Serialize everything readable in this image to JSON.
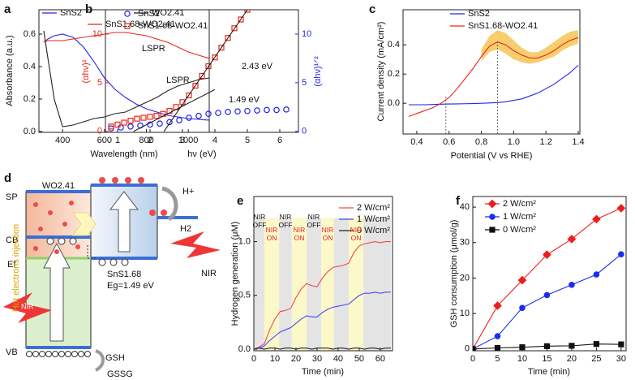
{
  "chart_data": [
    {
      "type": "line",
      "label": "a",
      "xlabel": "Wavelength (nm)",
      "ylabel": "Absorbance (a.u.)",
      "xlim": [
        287,
        1100
      ],
      "ylim": [
        -0.005,
        0.75
      ],
      "xticks": [
        400,
        600,
        800,
        1000
      ],
      "yticks": [
        {
          "value": 0,
          "label": "0.0"
        },
        0.2,
        0.4,
        0.6
      ],
      "x": [
        310,
        330,
        360,
        400,
        450,
        500,
        550,
        600,
        650,
        700,
        750,
        800,
        850,
        900,
        950,
        1000,
        1050,
        1100
      ],
      "series": [
        {
          "name": "SnS2",
          "color": "#2424e8",
          "values": [
            0.55,
            0.57,
            0.59,
            0.6,
            0.58,
            0.52,
            0.43,
            0.33,
            0.26,
            0.21,
            0.17,
            0.14,
            0.12,
            0.1,
            0.09,
            0.08,
            0.075,
            0.07
          ]
        },
        {
          "name": "WO2.41",
          "color": "#222222",
          "values": [
            0.62,
            0.45,
            0.2,
            0.03,
            0.04,
            0.06,
            0.08,
            0.09,
            0.11,
            0.12,
            0.15,
            0.18,
            0.21,
            0.25,
            0.28,
            0.3,
            0.32,
            0.33
          ]
        },
        {
          "name": "SnS1.68-WO2.41",
          "color": "#e8261c",
          "values": [
            0.55,
            0.56,
            0.56,
            0.56,
            0.57,
            0.58,
            0.59,
            0.6,
            0.61,
            0.61,
            0.6,
            0.59,
            0.57,
            0.55,
            0.52,
            0.49,
            0.47,
            0.45
          ]
        }
      ],
      "annotations": [
        "LSPR",
        "LSPR"
      ]
    },
    {
      "type": "scatter",
      "label": "b",
      "xlabel": "hν (eV)",
      "ylabel": "(αhν)²",
      "y2label": "(αhν)¹ᐟ²",
      "xlim": [
        0.625,
        6.575
      ],
      "ylim": [
        -0.1,
        12.5
      ],
      "y2lim": [
        -0.1,
        12.5
      ],
      "xticks": [
        1,
        2,
        3,
        4,
        5,
        6
      ],
      "yticks": [
        0,
        5,
        10
      ],
      "y2ticks": [
        0,
        5,
        10
      ],
      "series": [
        {
          "name": "SnS2",
          "color": "#2424e8",
          "marker": "circle",
          "axis": "y2",
          "x": [
            0.8,
            1.1,
            1.4,
            1.7,
            2.0,
            2.3,
            2.6,
            2.9,
            3.2,
            3.5,
            3.8,
            4.1,
            4.4,
            4.7,
            5.0,
            5.3,
            5.6,
            5.9,
            6.2
          ],
          "values": [
            0.3,
            0.4,
            0.5,
            0.6,
            0.7,
            0.8,
            0.95,
            1.15,
            1.4,
            1.6,
            1.8,
            1.9,
            2.0,
            2.05,
            2.1,
            2.15,
            2.2,
            2.2,
            2.25
          ]
        },
        {
          "name": "SnS1.68-WO2.41",
          "color": "#e8261c",
          "marker": "square",
          "x": [
            0.8,
            1.0,
            1.2,
            1.4,
            1.6,
            1.8,
            2.0,
            2.2,
            2.4,
            2.6,
            2.8,
            3.0,
            3.2,
            3.4,
            3.6,
            3.8,
            4.0,
            4.2,
            4.4,
            4.6,
            4.8,
            5.0
          ],
          "values": [
            0.5,
            0.7,
            0.9,
            1.1,
            1.3,
            1.4,
            1.5,
            1.6,
            1.8,
            2.1,
            2.5,
            3.0,
            3.7,
            4.7,
            5.7,
            6.7,
            7.6,
            8.6,
            9.6,
            10.6,
            11.5,
            12.5
          ]
        }
      ],
      "fits": [
        {
          "x": [
            2.43,
            5.0
          ],
          "values": [
            0,
            12.5
          ]
        },
        {
          "x": [
            1.49,
            4.0
          ],
          "values": [
            0,
            4.3
          ]
        }
      ],
      "annotations": [
        "2.43 eV",
        "1.49 eV"
      ]
    },
    {
      "type": "line",
      "label": "c",
      "xlabel": "Potential (V vs RHE)",
      "ylabel": "Current density (mA/cm²)",
      "xlim": [
        0.315,
        1.41
      ],
      "ylim": [
        -0.21,
        0.64
      ],
      "xticks": [
        0.4,
        0.6,
        0.8,
        {
          "value": 1,
          "label": "1.0"
        },
        1.2,
        1.4
      ],
      "yticks": [
        {
          "value": 0,
          "label": "0.0"
        },
        0.2,
        0.4
      ],
      "band": {
        "color": "#f5c04a",
        "x": [
          0.8,
          0.85,
          0.9,
          0.95,
          1.0,
          1.05,
          1.1,
          1.15,
          1.2,
          1.25,
          1.3,
          1.35,
          1.4
        ],
        "upper": [
          0.37,
          0.46,
          0.5,
          0.48,
          0.43,
          0.38,
          0.35,
          0.35,
          0.38,
          0.42,
          0.46,
          0.49,
          0.5
        ],
        "lower": [
          0.29,
          0.35,
          0.37,
          0.34,
          0.3,
          0.28,
          0.27,
          0.28,
          0.3,
          0.32,
          0.36,
          0.39,
          0.41
        ]
      },
      "x": [
        0.35,
        0.4,
        0.45,
        0.5,
        0.55,
        0.6,
        0.65,
        0.7,
        0.75,
        0.8,
        0.85,
        0.9,
        0.95,
        1.0,
        1.05,
        1.1,
        1.15,
        1.2,
        1.25,
        1.3,
        1.35,
        1.4
      ],
      "series": [
        {
          "name": "SnS2",
          "color": "#2424e8",
          "values": [
            -0.01,
            -0.01,
            -0.01,
            -0.008,
            -0.006,
            -0.005,
            -0.004,
            -0.003,
            -0.002,
            0.0,
            0.002,
            0.005,
            0.01,
            0.02,
            0.03,
            0.05,
            0.07,
            0.1,
            0.13,
            0.17,
            0.21,
            0.26
          ]
        },
        {
          "name": "SnS1.68-WO2.41",
          "color": "#e8261c",
          "values": [
            -0.09,
            -0.07,
            -0.05,
            -0.03,
            0.0,
            0.04,
            0.1,
            0.17,
            0.24,
            0.32,
            0.39,
            0.42,
            0.4,
            0.36,
            0.33,
            0.31,
            0.31,
            0.33,
            0.36,
            0.4,
            0.43,
            0.45
          ]
        }
      ],
      "vlines": [
        {
          "x": 0.58,
          "top": 0.05
        },
        {
          "x": 0.9,
          "top": 0.42
        }
      ]
    },
    {
      "type": "line",
      "label": "e",
      "xlabel": "Time (min)",
      "ylabel": "Hydrogen generation (μM)",
      "xlim": [
        0,
        65.8
      ],
      "ylim": [
        -0.015,
        1.42
      ],
      "xticks": [
        0,
        10,
        20,
        30,
        40,
        50,
        60
      ],
      "yticks": [
        {
          "value": 0,
          "label": "0.0"
        },
        0.5,
        {
          "value": 1,
          "label": "1.0"
        }
      ],
      "shade_top": 1.22,
      "regions": [
        {
          "start": 0,
          "end": 5,
          "color": "#e4e4e4"
        },
        {
          "start": 5,
          "end": 12,
          "color": "#fbf8c9"
        },
        {
          "start": 12,
          "end": 18,
          "color": "#e4e4e4"
        },
        {
          "start": 18,
          "end": 25,
          "color": "#fbf8c9"
        },
        {
          "start": 25,
          "end": 32,
          "color": "#e4e4e4"
        },
        {
          "start": 32,
          "end": 38,
          "color": "#fbf8c9"
        },
        {
          "start": 38,
          "end": 45,
          "color": "#e4e4e4"
        },
        {
          "start": 45,
          "end": 52,
          "color": "#fbf8c9"
        },
        {
          "start": 52,
          "end": 65,
          "color": "#e4e4e4"
        }
      ],
      "x": [
        0,
        2.5,
        5,
        7.5,
        10,
        12.5,
        15,
        17.5,
        20,
        22.5,
        25,
        27.5,
        30,
        32.5,
        35,
        37.5,
        40,
        42.5,
        45,
        47.5,
        50,
        52.5,
        55,
        57.5,
        60,
        62.5,
        65
      ],
      "series": [
        {
          "name": "2 W/cm²",
          "color": "#f04a4a",
          "values": [
            0,
            0.02,
            0.05,
            0.18,
            0.28,
            0.35,
            0.36,
            0.38,
            0.48,
            0.56,
            0.61,
            0.59,
            0.58,
            0.66,
            0.72,
            0.76,
            0.77,
            0.78,
            0.8,
            0.9,
            0.96,
            0.98,
            0.99,
            1.0,
            0.99,
            1.0,
            1.0
          ]
        },
        {
          "name": "1 W/cm²",
          "color": "#4a4af0",
          "values": [
            0,
            0.01,
            0.03,
            0.08,
            0.12,
            0.16,
            0.18,
            0.2,
            0.24,
            0.28,
            0.31,
            0.3,
            0.3,
            0.34,
            0.37,
            0.39,
            0.4,
            0.41,
            0.42,
            0.46,
            0.5,
            0.52,
            0.52,
            0.53,
            0.52,
            0.53,
            0.53
          ]
        },
        {
          "name": "0 W/cm²",
          "color": "#222222",
          "values": [
            0,
            0.01,
            0.0,
            0.01,
            0.01,
            0.0,
            0.01,
            0.01,
            0.0,
            0.01,
            0.01,
            0.0,
            0.01,
            0.01,
            0.01,
            0.0,
            0.01,
            0.01,
            0.0,
            0.01,
            0.01,
            0.0,
            0.01,
            0.01,
            0.0,
            0.01,
            0.01
          ]
        }
      ],
      "annotations": [
        "NIR OFF",
        "NIR OFF",
        "NIR OFF",
        "NIR ON",
        "NIR ON",
        "NIR ON",
        "NIR ON"
      ]
    },
    {
      "type": "line",
      "label": "f",
      "xlabel": "Time (min)",
      "ylabel": "GSH consumption (μmol/g)",
      "xlim": [
        0,
        31
      ],
      "ylim": [
        -0.5,
        43
      ],
      "xticks": [
        0,
        5,
        10,
        15,
        20,
        25,
        30
      ],
      "yticks": [
        0,
        10,
        20,
        30,
        40
      ],
      "x": [
        0,
        5,
        10,
        15,
        20,
        25,
        30
      ],
      "series": [
        {
          "name": "2 W/cm²",
          "color": "#ee1c1c",
          "marker": "diamond",
          "values": [
            0,
            12.2,
            19.4,
            26.6,
            31,
            36.6,
            39.7
          ]
        },
        {
          "name": "1 W/cm²",
          "color": "#1c2cee",
          "marker": "circle",
          "values": [
            0,
            3.6,
            11.6,
            15.2,
            18.1,
            21,
            26.7
          ]
        },
        {
          "name": "0 W/cm²",
          "color": "#111111",
          "marker": "square",
          "values": [
            0,
            0.3,
            0.5,
            0.8,
            0.9,
            1.4,
            1.3
          ]
        }
      ]
    }
  ],
  "diagram": {
    "label": "d",
    "sp": "SP",
    "cb": "CB",
    "ef": "Ef",
    "vb": "VB",
    "wo": "WO2.41",
    "sns": "SnS1.68",
    "eg": "Eg=1.49 eV",
    "hplus": "H+",
    "h2": "H2",
    "nir_right": "NIR",
    "nir_left": "NIR",
    "injection": "Hot electrons injection",
    "gsh": "GSH",
    "gssg": "GSSG"
  }
}
